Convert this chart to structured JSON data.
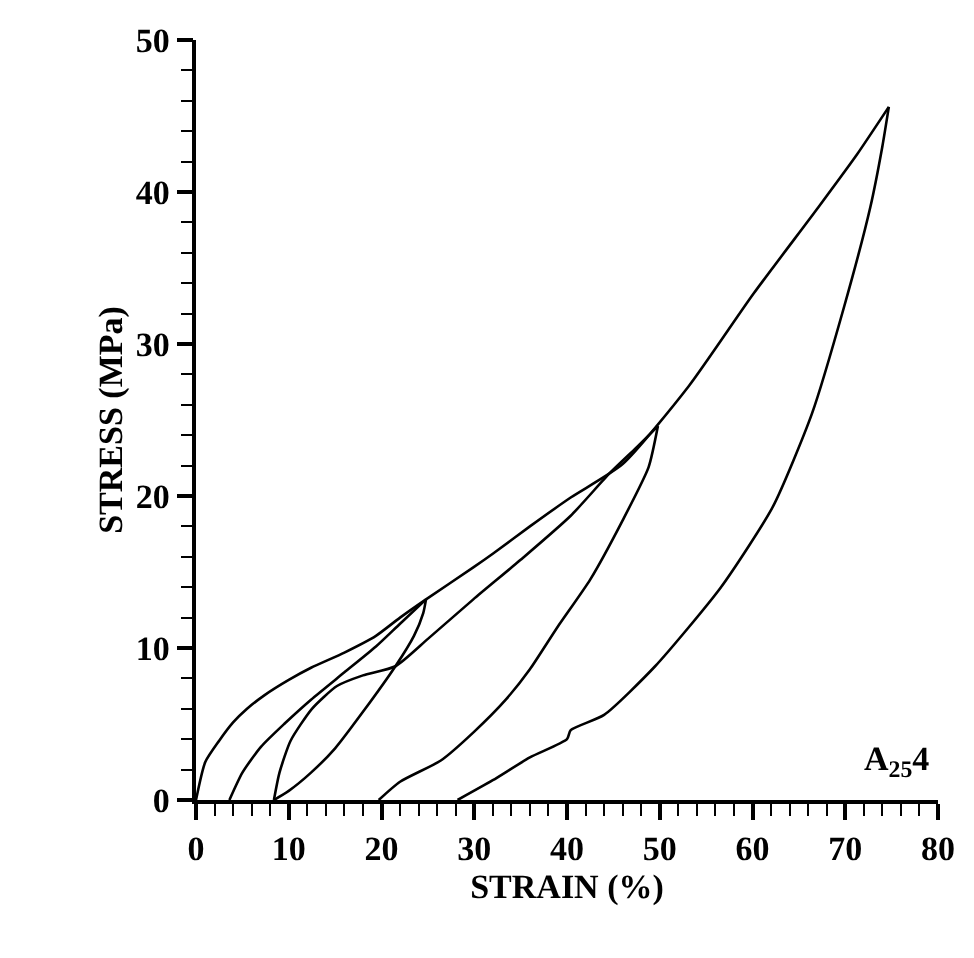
{
  "chart_data": {
    "type": "line",
    "xlabel": "STRAIN (%)",
    "ylabel": "STRESS (MPa)",
    "series": [
      {
        "color": "#000000",
        "x": [
          0,
          1,
          2.5,
          4,
          5.5,
          7.4,
          10,
          12.4,
          16,
          19.4,
          22,
          24.8,
          29.9,
          32,
          36,
          40.4,
          46,
          53.1,
          60.1,
          67.1,
          71.3,
          74.7
        ],
        "values": [
          0,
          2.5,
          3.9,
          5.1,
          6,
          6.9,
          7.9,
          8.7,
          9.7,
          10.8,
          12,
          13.2,
          15.3,
          16.2,
          18,
          19.9,
          22.1,
          27.2,
          33.3,
          39,
          42.5,
          45.6
        ]
      },
      {
        "color": "#000000",
        "x": [
          3.6,
          5,
          7,
          9.5,
          12.4,
          16,
          19.4,
          22,
          24.8
        ],
        "values": [
          0,
          1.8,
          3.5,
          5,
          6.6,
          8.4,
          10.1,
          11.6,
          13.2
        ]
      },
      {
        "color": "#000000",
        "x": [
          8.4,
          10,
          12.4,
          15,
          18,
          21.5,
          23.5,
          24.5,
          24.8
        ],
        "values": [
          0,
          0.6,
          1.8,
          3.4,
          5.8,
          8.8,
          10.8,
          12.3,
          13.2
        ]
      },
      {
        "color": "#000000",
        "x": [
          8.4,
          9,
          10.2,
          12.5,
          15.2,
          18,
          21.5,
          25,
          29.9,
          35,
          40.4,
          44.6,
          47.5,
          49.8
        ],
        "values": [
          0,
          1.8,
          3.9,
          6,
          7.5,
          8.2,
          8.8,
          10.6,
          13.2,
          15.8,
          18.7,
          21.5,
          23.2,
          24.6
        ]
      },
      {
        "color": "#000000",
        "x": [
          19.7,
          22,
          26.4,
          30,
          33.4,
          36,
          39,
          42.5,
          46,
          48.8,
          49.8
        ],
        "values": [
          0,
          1.2,
          2.6,
          4.5,
          6.6,
          8.6,
          11.4,
          14.5,
          18.4,
          21.9,
          24.6
        ]
      },
      {
        "color": "#000000",
        "x": [
          28.2,
          32,
          36,
          40,
          40.4,
          44,
          49.5,
          56.6,
          62.2,
          66.4,
          69.9,
          72.7,
          74,
          74.7
        ],
        "values": [
          0,
          1.3,
          2.8,
          4,
          4.6,
          5.6,
          8.8,
          14,
          19.3,
          25.4,
          32.5,
          39,
          43,
          45.6
        ]
      }
    ],
    "xlim": [
      0,
      80
    ],
    "xticks": [
      0,
      {
        "value": 2,
        "label": null
      },
      {
        "value": 4,
        "label": null
      },
      {
        "value": 6,
        "label": null
      },
      {
        "value": 8,
        "label": null
      },
      10,
      {
        "value": 12,
        "label": null
      },
      {
        "value": 14,
        "label": null
      },
      {
        "value": 16,
        "label": null
      },
      {
        "value": 18,
        "label": null
      },
      20,
      {
        "value": 22,
        "label": null
      },
      {
        "value": 24,
        "label": null
      },
      {
        "value": 26,
        "label": null
      },
      {
        "value": 28,
        "label": null
      },
      30,
      {
        "value": 32,
        "label": null
      },
      {
        "value": 34,
        "label": null
      },
      {
        "value": 36,
        "label": null
      },
      {
        "value": 38,
        "label": null
      },
      40,
      {
        "value": 42,
        "label": null
      },
      {
        "value": 44,
        "label": null
      },
      {
        "value": 46,
        "label": null
      },
      {
        "value": 48,
        "label": null
      },
      50,
      {
        "value": 52,
        "label": null
      },
      {
        "value": 54,
        "label": null
      },
      {
        "value": 56,
        "label": null
      },
      {
        "value": 58,
        "label": null
      },
      60,
      {
        "value": 62,
        "label": null
      },
      {
        "value": 64,
        "label": null
      },
      {
        "value": 66,
        "label": null
      },
      {
        "value": 68,
        "label": null
      },
      70,
      {
        "value": 72,
        "label": null
      },
      {
        "value": 74,
        "label": null
      },
      {
        "value": 76,
        "label": null
      },
      {
        "value": 78,
        "label": null
      },
      80
    ],
    "ylim": [
      0,
      50
    ],
    "yticks": [
      0,
      {
        "value": 2,
        "label": null
      },
      {
        "value": 4,
        "label": null
      },
      {
        "value": 6,
        "label": null
      },
      {
        "value": 8,
        "label": null
      },
      10,
      {
        "value": 12,
        "label": null
      },
      {
        "value": 14,
        "label": null
      },
      {
        "value": 16,
        "label": null
      },
      {
        "value": 18,
        "label": null
      },
      20,
      {
        "value": 22,
        "label": null
      },
      {
        "value": 24,
        "label": null
      },
      {
        "value": 26,
        "label": null
      },
      {
        "value": 28,
        "label": null
      },
      30,
      {
        "value": 32,
        "label": null
      },
      {
        "value": 34,
        "label": null
      },
      {
        "value": 36,
        "label": null
      },
      {
        "value": 38,
        "label": null
      },
      40,
      {
        "value": 42,
        "label": null
      },
      {
        "value": 44,
        "label": null
      },
      {
        "value": 46,
        "label": null
      },
      {
        "value": 48,
        "label": null
      },
      50
    ],
    "annotations": [
      "A$_{25}$4"
    ],
    "marker": "none",
    "line_style": "solid"
  }
}
